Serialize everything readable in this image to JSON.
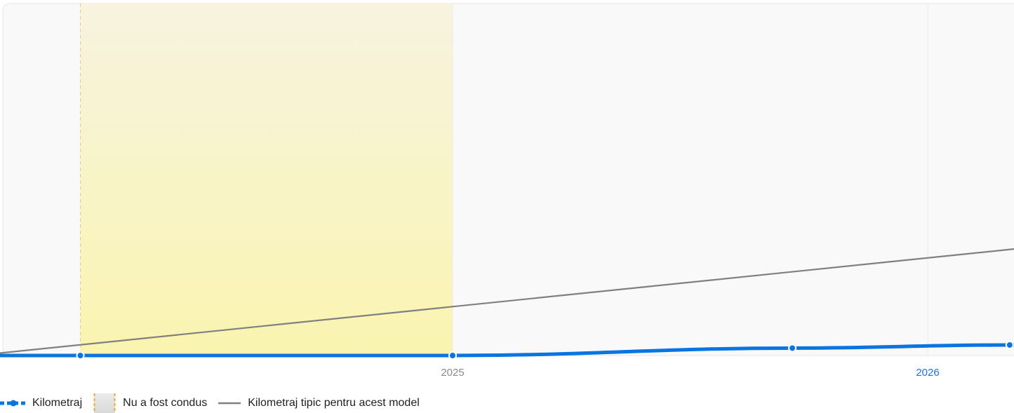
{
  "chart_data": {
    "type": "line",
    "title": "",
    "xlabel": "",
    "ylabel": "",
    "x_axis": {
      "ticks": [
        {
          "label": "2025",
          "date": "2025-01-01",
          "color": "#8a8a8a"
        },
        {
          "label": "2026",
          "date": "2026-01-01",
          "color": "#1a73e8"
        }
      ],
      "range": [
        "2024-01-01",
        "2026-03-15"
      ]
    },
    "y_axis": {
      "range": [
        0,
        20000
      ],
      "visible": false
    },
    "grid": "vertical-at-ticks",
    "legend_position": "bottom-left",
    "series": [
      {
        "name": "Kilometraj",
        "color": "#0a74e0",
        "style": "solid-with-markers",
        "points": [
          {
            "x": "2024-01-10",
            "y": 0
          },
          {
            "x": "2024-03-21",
            "y": 0
          },
          {
            "x": "2025-01-01",
            "y": 0
          },
          {
            "x": "2025-09-19",
            "y": 420
          },
          {
            "x": "2026-03-05",
            "y": 600
          }
        ]
      },
      {
        "name": "Kilometraj tipic pentru acest model",
        "color": "#808080",
        "style": "line",
        "points": [
          {
            "x": "2024-01-01",
            "y": 0
          },
          {
            "x": "2026-03-15",
            "y": 6100
          }
        ]
      }
    ],
    "bands": [
      {
        "name": "Nu a fost condus",
        "start": "2024-03-21",
        "end": "2025-01-01",
        "fill_top": "#f7f3df",
        "fill_bottom": "#faf4b0",
        "border": "#f5c97a"
      }
    ]
  }
}
